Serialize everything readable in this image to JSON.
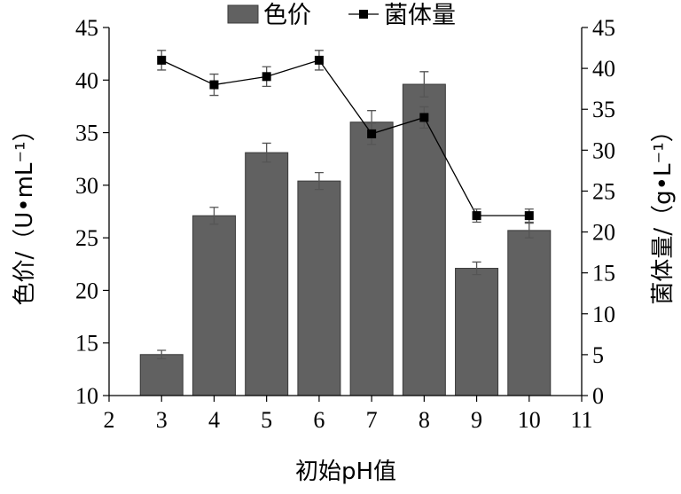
{
  "chart_data": {
    "type": "bar",
    "xlabel": "初始pH值",
    "ylabel_left": "色价/（U•mL⁻¹）",
    "ylabel_right": "菌体量/（g•L⁻¹）",
    "xlim": [
      2,
      11
    ],
    "xticks": [
      "2",
      "3",
      "4",
      "5",
      "6",
      "7",
      "8",
      "9",
      "10",
      "11"
    ],
    "ylim_left": [
      10,
      45
    ],
    "yticks_left": [
      "10",
      "15",
      "20",
      "25",
      "30",
      "35",
      "40",
      "45"
    ],
    "ylim_right": [
      0,
      45
    ],
    "yticks_right": [
      "0",
      "5",
      "10",
      "15",
      "20",
      "25",
      "30",
      "35",
      "40",
      "45"
    ],
    "x": [
      3,
      4,
      5,
      6,
      7,
      8,
      9,
      10
    ],
    "series": [
      {
        "name": "色价",
        "kind": "bar",
        "axis": "left",
        "values": [
          13.9,
          27.1,
          33.1,
          30.4,
          36.0,
          39.6,
          22.1,
          25.7
        ],
        "errors": [
          0.4,
          0.8,
          0.9,
          0.8,
          1.1,
          1.2,
          0.6,
          0.7
        ],
        "color": "#616161"
      },
      {
        "name": "菌体量",
        "kind": "line",
        "axis": "right",
        "values": [
          41.0,
          38.0,
          39.0,
          41.0,
          32.0,
          34.0,
          22.0,
          22.0
        ],
        "errors": [
          1.2,
          1.3,
          1.2,
          1.2,
          1.3,
          1.3,
          0.8,
          0.8
        ],
        "color": "#000000"
      }
    ],
    "legend": {
      "position": "top-center",
      "entries": [
        "色价",
        "菌体量"
      ]
    },
    "grid": false
  }
}
